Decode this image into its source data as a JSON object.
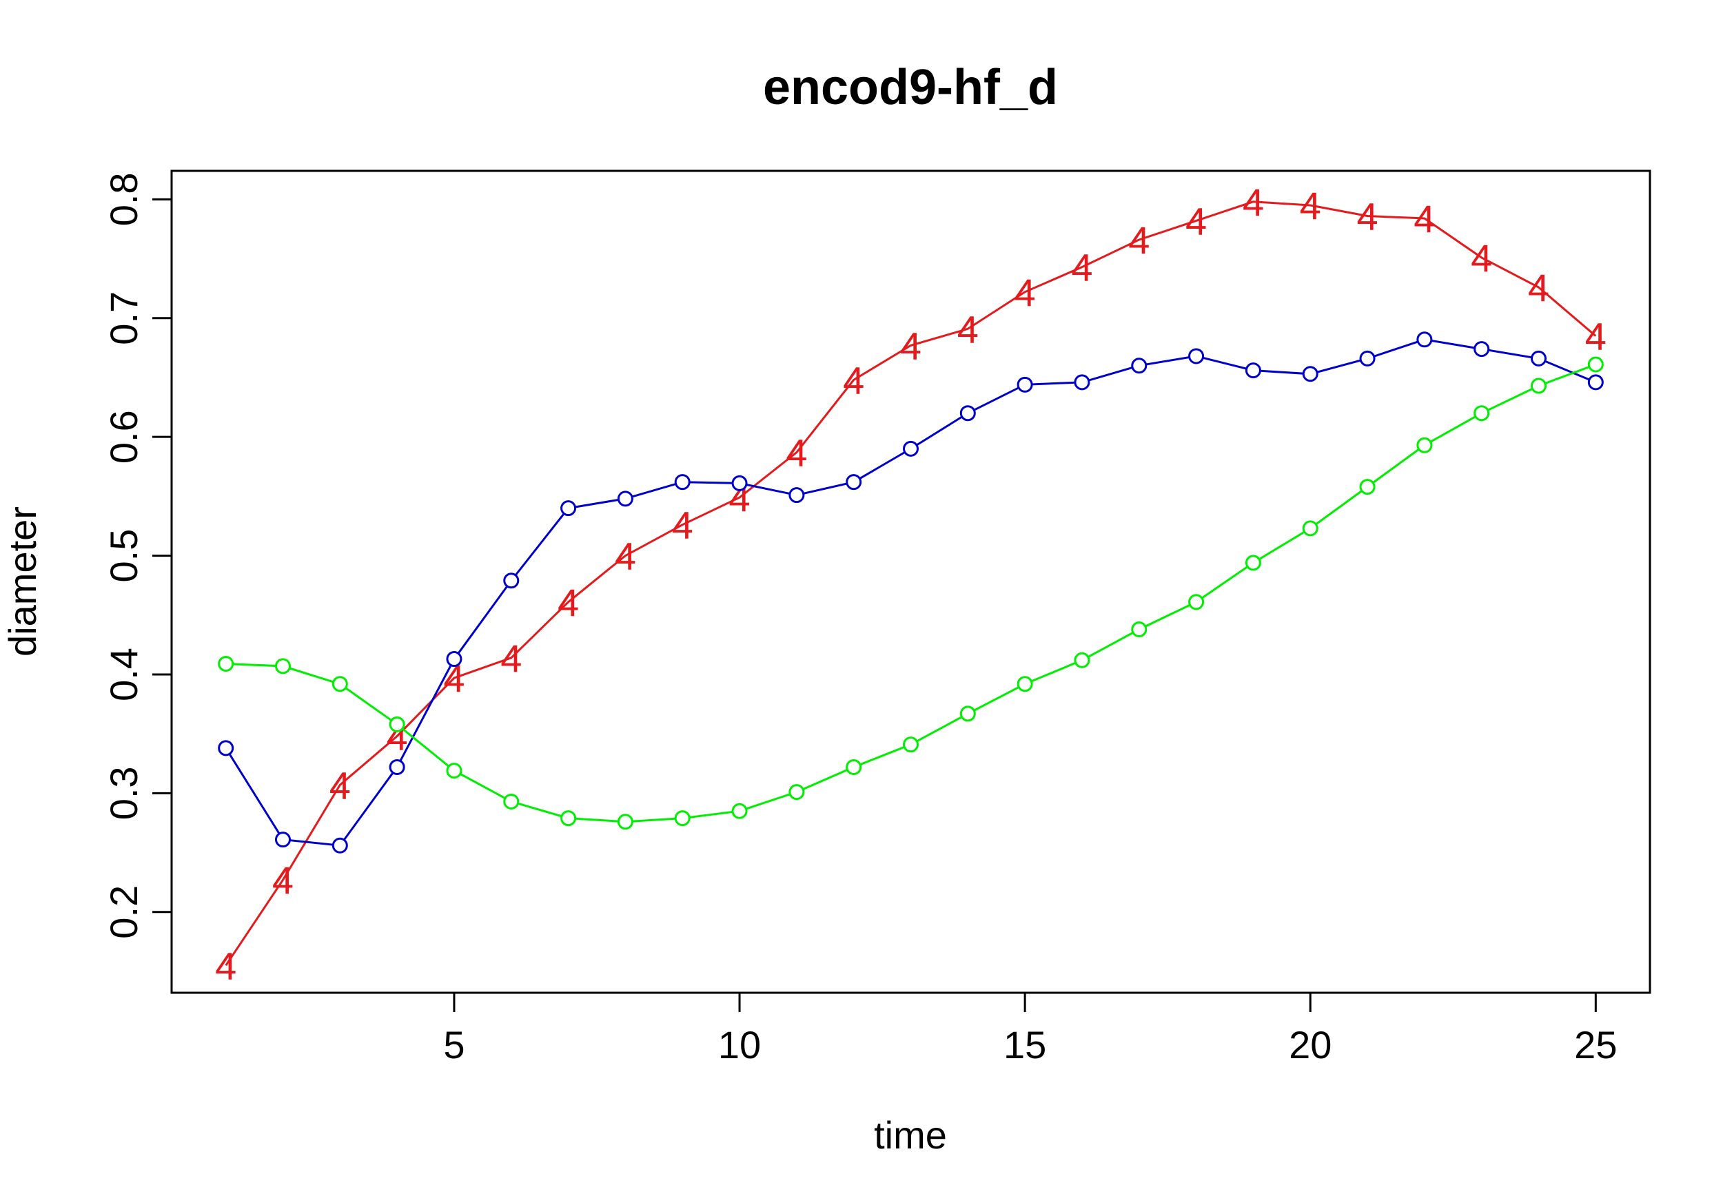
{
  "chart_data": {
    "type": "line",
    "title": "encod9-hf_d",
    "xlabel": "time",
    "ylabel": "diameter",
    "xlim": [
      0.05,
      25.95
    ],
    "ylim": [
      0.132,
      0.824
    ],
    "xticks": [
      5,
      10,
      15,
      20,
      25
    ],
    "xtick_labels": [
      "5",
      "10",
      "15",
      "20",
      "25"
    ],
    "yticks": [
      0.2,
      0.3,
      0.4,
      0.5,
      0.6,
      0.7,
      0.8
    ],
    "ytick_labels": [
      "0.2",
      "0.3",
      "0.4",
      "0.5",
      "0.6",
      "0.7",
      "0.8"
    ],
    "grid": false,
    "x": [
      1,
      2,
      3,
      4,
      5,
      6,
      7,
      8,
      9,
      10,
      11,
      12,
      13,
      14,
      15,
      16,
      17,
      18,
      19,
      20,
      21,
      22,
      23,
      24,
      25
    ],
    "series": [
      {
        "color": "#e41a1c",
        "marker": "4",
        "values": [
          0.155,
          0.227,
          0.307,
          0.348,
          0.397,
          0.414,
          0.461,
          0.5,
          0.526,
          0.549,
          0.587,
          0.648,
          0.677,
          0.691,
          0.722,
          0.743,
          0.766,
          0.782,
          0.798,
          0.795,
          0.786,
          0.784,
          0.751,
          0.726,
          0.685
        ]
      },
      {
        "color": "#0000cd",
        "marker": "circle",
        "values": [
          0.338,
          0.261,
          0.256,
          0.322,
          0.413,
          0.479,
          0.54,
          0.548,
          0.562,
          0.561,
          0.551,
          0.562,
          0.59,
          0.62,
          0.644,
          0.646,
          0.66,
          0.668,
          0.656,
          0.653,
          0.666,
          0.682,
          0.674,
          0.666,
          0.646
        ]
      },
      {
        "color": "#00ee00",
        "marker": "circle",
        "values": [
          0.409,
          0.407,
          0.392,
          0.358,
          0.319,
          0.293,
          0.279,
          0.276,
          0.279,
          0.285,
          0.301,
          0.322,
          0.341,
          0.367,
          0.392,
          0.412,
          0.438,
          0.461,
          0.494,
          0.523,
          0.558,
          0.593,
          0.62,
          0.643,
          0.661
        ]
      }
    ]
  }
}
